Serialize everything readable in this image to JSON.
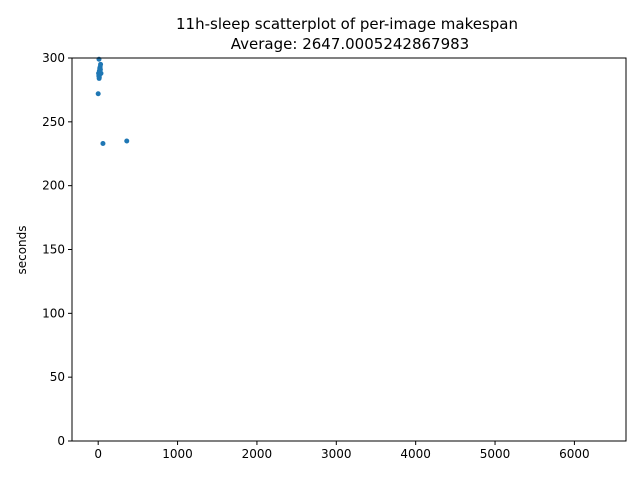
{
  "chart_data": {
    "type": "scatter",
    "title": "11h-sleep scatterplot of per-image makespan",
    "subtitle": "Average: 2647.0005242867983",
    "xlabel": "",
    "ylabel": "seconds",
    "xlim": [
      -330,
      6650
    ],
    "ylim": [
      0,
      300
    ],
    "x_ticks": [
      "0",
      "1000",
      "2000",
      "3000",
      "4000",
      "5000",
      "6000"
    ],
    "y_ticks": [
      "0",
      "50",
      "100",
      "150",
      "200",
      "250",
      "300"
    ],
    "grid": false,
    "legend": "none",
    "series": [
      {
        "color": "#1f77b4",
        "points": [
          {
            "x": 0,
            "y": 272
          },
          {
            "x": 10,
            "y": 299
          },
          {
            "x": 5,
            "y": 288
          },
          {
            "x": 8,
            "y": 286
          },
          {
            "x": 12,
            "y": 284
          },
          {
            "x": 15,
            "y": 290
          },
          {
            "x": 18,
            "y": 287
          },
          {
            "x": 20,
            "y": 292
          },
          {
            "x": 22,
            "y": 289
          },
          {
            "x": 25,
            "y": 293
          },
          {
            "x": 28,
            "y": 291
          },
          {
            "x": 30,
            "y": 295
          },
          {
            "x": 35,
            "y": 288
          },
          {
            "x": 14,
            "y": 285
          },
          {
            "x": 60,
            "y": 233
          },
          {
            "x": 360,
            "y": 235
          }
        ]
      }
    ]
  }
}
